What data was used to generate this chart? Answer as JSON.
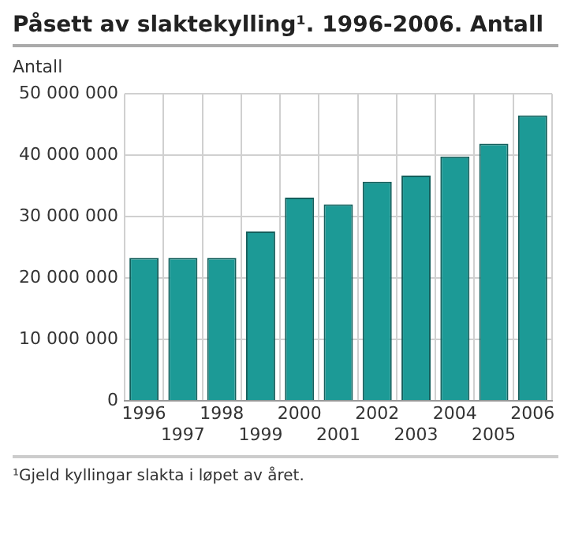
{
  "chart_data": {
    "type": "bar",
    "title": "Påsett av slaktekylling¹. 1996-2006. Antall",
    "ylabel": "Antall",
    "categories": [
      "1996",
      "1997",
      "1998",
      "1999",
      "2000",
      "2001",
      "2002",
      "2003",
      "2004",
      "2005",
      "2006"
    ],
    "values": [
      23300000,
      23300000,
      23300000,
      27600000,
      33100000,
      32000000,
      35700000,
      36700000,
      39800000,
      41900000,
      46500000
    ],
    "color": "#1c9a96",
    "ylim": [
      0,
      50000000
    ],
    "yticks": [
      {
        "value": 0,
        "label": "0"
      },
      {
        "value": 10000000,
        "label": "10 000 000"
      },
      {
        "value": 20000000,
        "label": "20 000 000"
      },
      {
        "value": 30000000,
        "label": "30 000 000"
      },
      {
        "value": 40000000,
        "label": "40 000 000"
      },
      {
        "value": 50000000,
        "label": "50 000 000"
      }
    ],
    "grid": true,
    "legend": false,
    "annotations": [
      "¹Gjeld kyllingar slakta i løpet av året."
    ]
  }
}
